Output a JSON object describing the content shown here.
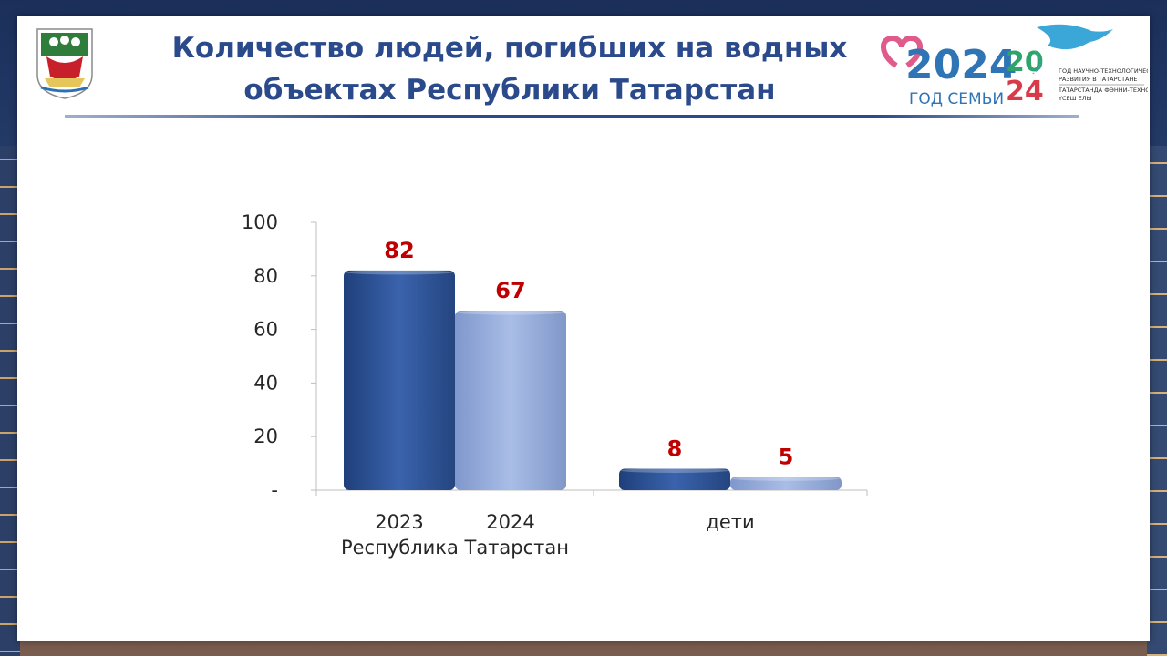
{
  "slide": {
    "title": "Количество людей, погибших на водных объектах Республики Татарстан"
  },
  "logo": {
    "year_text": "2024",
    "family_text": "ГОД СЕМЬИ",
    "tech_year_top": "20",
    "tech_year_bottom": "24",
    "tech_line1": "ГОД НАУЧНО-ТЕХНОЛОГИЧЕСКОГО",
    "tech_line2": "РАЗВИТИЯ В ТАТАРСТАНЕ",
    "tech_line3": "ТАТАРСТАНДА ФӘННИ-ТЕХНОЛОГИК",
    "tech_line4": "ҮСЕШ ЕЛЫ"
  },
  "colors": {
    "title": "#2b4a8c",
    "series_2023": "#2f5597",
    "series_2024": "#8ea9db",
    "data_label": "#c00000"
  },
  "chart_data": {
    "type": "bar",
    "groups": [
      {
        "categories": [
          "2023",
          "2024"
        ],
        "group_label": "Республика Татарстан"
      },
      {
        "categories": [],
        "group_label": "дети"
      }
    ],
    "series": [
      {
        "name": "",
        "values": [
          82,
          8
        ]
      },
      {
        "name": "",
        "values": [
          67,
          5
        ]
      }
    ],
    "yticks": [
      "-",
      "20",
      "40",
      "60",
      "80",
      "100"
    ],
    "ylim": [
      0,
      100
    ],
    "grid": false,
    "legend": "none"
  }
}
